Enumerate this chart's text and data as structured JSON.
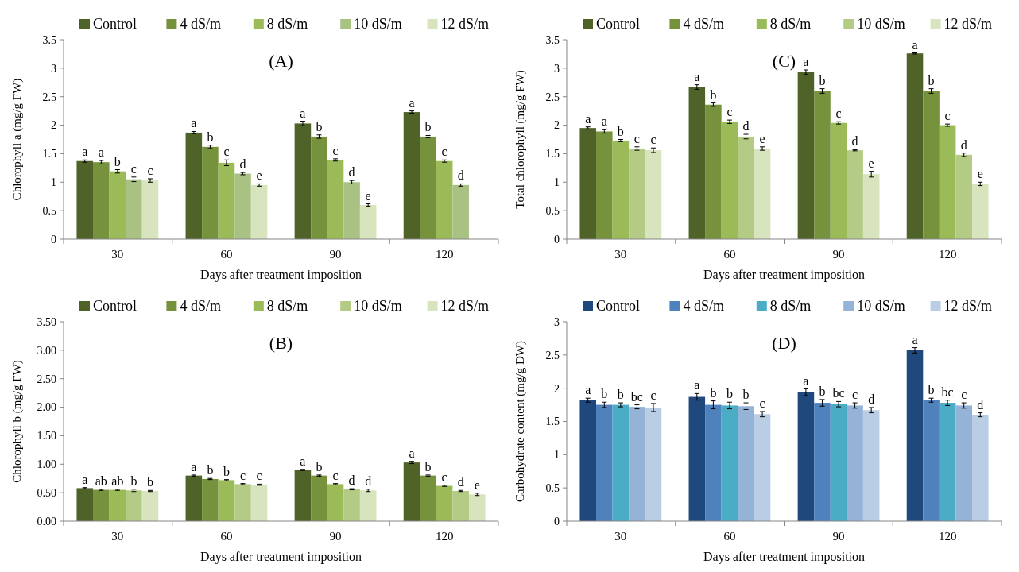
{
  "chart_data": [
    {
      "type": "bar",
      "title": "(A)",
      "xlabel": "Days after treatment imposition",
      "ylabel": "Chlorophyll a (mg/g FW)",
      "categories": [
        "30",
        "60",
        "90",
        "120"
      ],
      "ylim": [
        0,
        3.5
      ],
      "yticks": [
        0,
        0.5,
        1,
        1.5,
        2,
        2.5,
        3,
        3.5
      ],
      "legend": "top",
      "series": [
        {
          "name": "Control",
          "color": "#4f6228",
          "values": [
            1.37,
            1.87,
            2.03,
            2.23
          ],
          "errors": [
            0.02,
            0.02,
            0.04,
            0.02
          ]
        },
        {
          "name": "4 dS/m",
          "color": "#76923c",
          "values": [
            1.35,
            1.62,
            1.8,
            1.8
          ],
          "errors": [
            0.03,
            0.03,
            0.03,
            0.02
          ]
        },
        {
          "name": "8 dS/m",
          "color": "#9bbb59",
          "values": [
            1.19,
            1.34,
            1.39,
            1.37
          ],
          "errors": [
            0.03,
            0.05,
            0.02,
            0.02
          ]
        },
        {
          "name": "10 dS/m",
          "color": "#a9c283",
          "values": [
            1.05,
            1.15,
            1.0,
            0.95
          ],
          "errors": [
            0.04,
            0.02,
            0.03,
            0.02
          ]
        },
        {
          "name": "12 dS/m",
          "color": "#d7e4bd",
          "values": [
            1.03,
            0.95,
            0.6,
            null
          ],
          "errors": [
            0.03,
            0.02,
            0.02,
            null
          ]
        }
      ],
      "annotations": [
        "a",
        "a",
        "b",
        "c",
        "c",
        "a",
        "b",
        "c",
        "d",
        "e",
        "a",
        "b",
        "c",
        "d",
        "e",
        "a",
        "b",
        "c",
        "d"
      ]
    },
    {
      "type": "bar",
      "title": "(C)",
      "xlabel": "Days after treatment imposition",
      "ylabel": "Total chlorophyll (mg/g FW)",
      "categories": [
        "30",
        "60",
        "90",
        "120"
      ],
      "ylim": [
        0,
        3.5
      ],
      "yticks": [
        0,
        0.5,
        1,
        1.5,
        2,
        2.5,
        3,
        3.5
      ],
      "legend": "top",
      "series": [
        {
          "name": "Control",
          "color": "#4f6228",
          "values": [
            1.95,
            2.67,
            2.93,
            3.26
          ],
          "errors": [
            0.02,
            0.04,
            0.04,
            0.01
          ]
        },
        {
          "name": "4 dS/m",
          "color": "#76923c",
          "values": [
            1.89,
            2.36,
            2.6,
            2.6
          ],
          "errors": [
            0.03,
            0.03,
            0.04,
            0.04
          ]
        },
        {
          "name": "8 dS/m",
          "color": "#9bbb59",
          "values": [
            1.73,
            2.06,
            2.04,
            2.0
          ],
          "errors": [
            0.02,
            0.03,
            0.02,
            0.02
          ]
        },
        {
          "name": "10 dS/m",
          "color": "#b3cb85",
          "values": [
            1.59,
            1.8,
            1.56,
            1.48
          ],
          "errors": [
            0.03,
            0.04,
            0.01,
            0.03
          ]
        },
        {
          "name": "12 dS/m",
          "color": "#d7e4bd",
          "values": [
            1.56,
            1.59,
            1.14,
            0.97
          ],
          "errors": [
            0.04,
            0.03,
            0.05,
            0.03
          ]
        }
      ],
      "annotations": [
        "a",
        "a",
        "b",
        "c",
        "c",
        "a",
        "b",
        "c",
        "d",
        "e",
        "a",
        "b",
        "c",
        "d",
        "e",
        "a",
        "b",
        "c",
        "d",
        "e"
      ]
    },
    {
      "type": "bar",
      "title": "(B)",
      "xlabel": "Days after treatment imposition",
      "ylabel": "Chlorophyll b (mg/g FW)",
      "categories": [
        "30",
        "60",
        "90",
        "120"
      ],
      "ylim": [
        0,
        3.5
      ],
      "yticks": [
        {
          "value": 0,
          "label": "0.00"
        },
        {
          "value": 0.5,
          "label": "0.50"
        },
        {
          "value": 1,
          "label": "1.00"
        },
        {
          "value": 1.5,
          "label": "1.50"
        },
        {
          "value": 2,
          "label": "2.00"
        },
        {
          "value": 2.5,
          "label": "2.50"
        },
        {
          "value": 3,
          "label": "3.00"
        },
        {
          "value": 3.5,
          "label": "3.50"
        }
      ],
      "legend": "top",
      "series": [
        {
          "name": "Control",
          "color": "#4f6228",
          "values": [
            0.58,
            0.8,
            0.9,
            1.03
          ],
          "errors": [
            0.01,
            0.01,
            0.01,
            0.02
          ]
        },
        {
          "name": "4 dS/m",
          "color": "#76923c",
          "values": [
            0.55,
            0.74,
            0.8,
            0.8
          ],
          "errors": [
            0.01,
            0.01,
            0.01,
            0.01
          ]
        },
        {
          "name": "8 dS/m",
          "color": "#9bbb59",
          "values": [
            0.55,
            0.72,
            0.65,
            0.62
          ],
          "errors": [
            0.01,
            0.01,
            0.01,
            0.01
          ]
        },
        {
          "name": "10 dS/m",
          "color": "#b3cb85",
          "values": [
            0.54,
            0.65,
            0.56,
            0.53
          ],
          "errors": [
            0.02,
            0.01,
            0.01,
            0.01
          ]
        },
        {
          "name": "12 dS/m",
          "color": "#d7e4bd",
          "values": [
            0.53,
            0.64,
            0.54,
            0.47
          ],
          "errors": [
            0.01,
            0.01,
            0.02,
            0.02
          ]
        }
      ],
      "annotations": [
        "a",
        "ab",
        "ab",
        "b",
        "b",
        "a",
        "b",
        "b",
        "c",
        "c",
        "a",
        "b",
        "c",
        "d",
        "d",
        "a",
        "b",
        "c",
        "d",
        "e"
      ]
    },
    {
      "type": "bar",
      "title": "(D)",
      "xlabel": "Days after treatment imposition",
      "ylabel": "Carbohydrate content (mg/g DW)",
      "categories": [
        "30",
        "60",
        "90",
        "120"
      ],
      "ylim": [
        0,
        3
      ],
      "yticks": [
        0,
        0.5,
        1,
        1.5,
        2,
        2.5,
        3
      ],
      "legend": "top",
      "series": [
        {
          "name": "Control",
          "color": "#1f497d",
          "values": [
            1.82,
            1.87,
            1.94,
            2.57
          ],
          "errors": [
            0.03,
            0.05,
            0.05,
            0.04
          ]
        },
        {
          "name": "4 dS/m",
          "color": "#4f81bd",
          "values": [
            1.75,
            1.75,
            1.78,
            1.82
          ],
          "errors": [
            0.04,
            0.06,
            0.05,
            0.03
          ]
        },
        {
          "name": "8 dS/m",
          "color": "#4bacc6",
          "values": [
            1.75,
            1.74,
            1.76,
            1.78
          ],
          "errors": [
            0.03,
            0.05,
            0.04,
            0.04
          ]
        },
        {
          "name": "10 dS/m",
          "color": "#95b3d7",
          "values": [
            1.72,
            1.73,
            1.74,
            1.74
          ],
          "errors": [
            0.03,
            0.05,
            0.04,
            0.04
          ]
        },
        {
          "name": "12 dS/m",
          "color": "#b9cde5",
          "values": [
            1.71,
            1.61,
            1.67,
            1.6
          ],
          "errors": [
            0.06,
            0.04,
            0.04,
            0.03
          ]
        }
      ],
      "annotations": [
        "a",
        "b",
        "b",
        "bc",
        "c",
        "a",
        "b",
        "b",
        "b",
        "c",
        "a",
        "b",
        "bc",
        "c",
        "d",
        "a",
        "b",
        "bc",
        "c",
        "d"
      ]
    }
  ]
}
